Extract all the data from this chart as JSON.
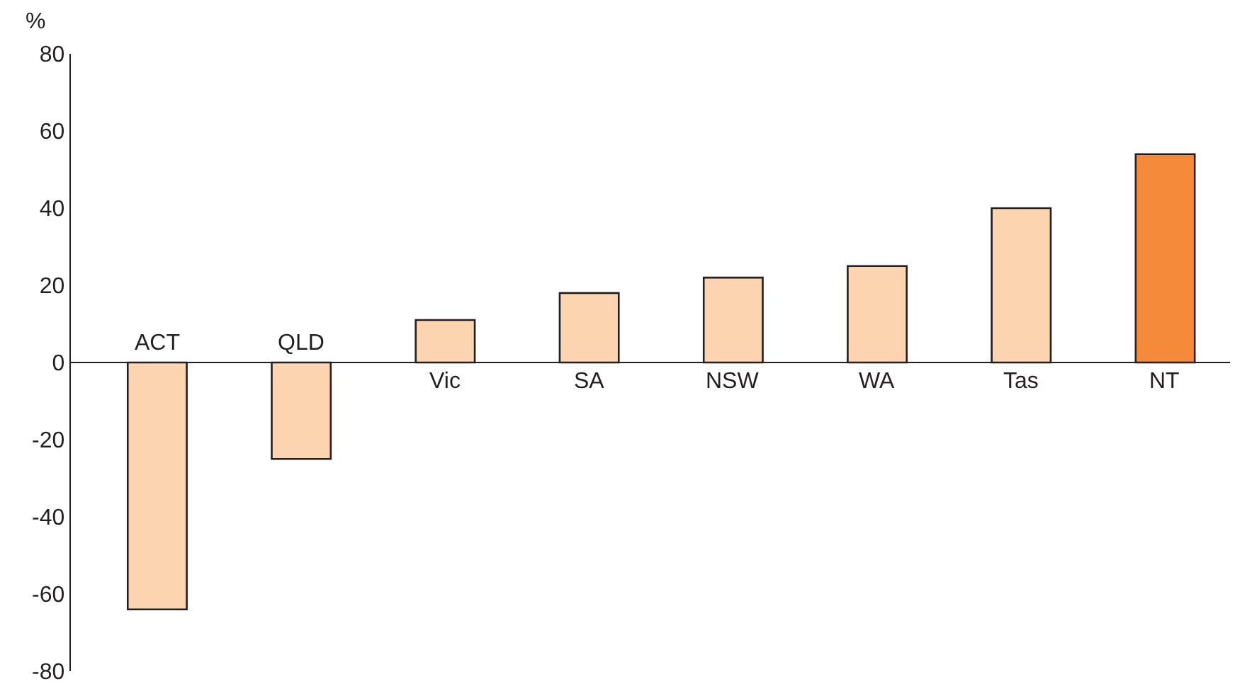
{
  "chart_data": {
    "type": "bar",
    "ylabel": "%",
    "categories": [
      "ACT",
      "QLD",
      "Vic",
      "SA",
      "NSW",
      "WA",
      "Tas",
      "NT"
    ],
    "values": [
      -64,
      -25,
      11,
      18,
      22,
      25,
      40,
      54
    ],
    "colors": [
      "#fcd5b0",
      "#fcd5b0",
      "#fcd5b0",
      "#fcd5b0",
      "#fcd5b0",
      "#fcd5b0",
      "#fcd5b0",
      "#f58a3a"
    ],
    "ylim": [
      -80,
      80
    ],
    "yticks": [
      -80,
      -60,
      -40,
      -20,
      0,
      20,
      40,
      60,
      80
    ],
    "grid": false
  }
}
